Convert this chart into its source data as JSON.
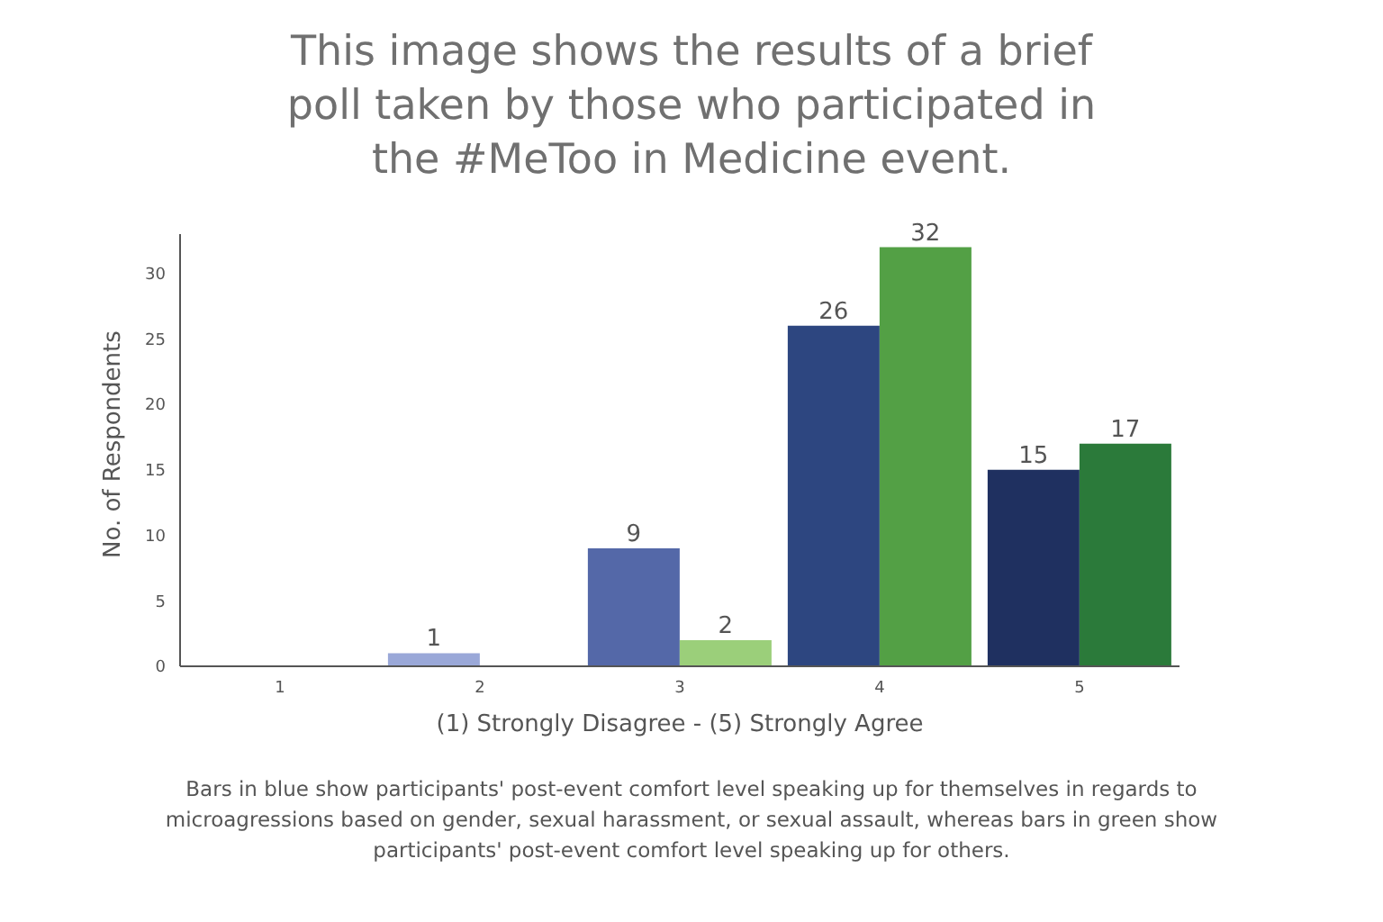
{
  "chart_data": {
    "type": "bar",
    "title": "This image shows the results of a brief poll taken by those who participated in the #MeToo in Medicine event.",
    "xlabel": "(1) Strongly Disagree - (5) Strongly Agree",
    "ylabel": "No. of Respondents",
    "categories": [
      "1",
      "2",
      "3",
      "4",
      "5"
    ],
    "series": [
      {
        "colors": [
          "#9aa8d8",
          "#9aa8d8",
          "#5468a8",
          "#2d4680",
          "#1f3060"
        ],
        "values": [
          0,
          1,
          9,
          26,
          15
        ],
        "value_labels": [
          null,
          "1",
          "9",
          "26",
          "15"
        ]
      },
      {
        "colors": [
          "#9bcf7a",
          "#9bcf7a",
          "#9bcf7a",
          "#53a045",
          "#2b7a3a"
        ],
        "values": [
          0,
          0,
          2,
          32,
          17
        ],
        "value_labels": [
          null,
          null,
          "2",
          "32",
          "17"
        ]
      }
    ],
    "ylim": [
      0,
      33
    ],
    "yticks": [
      0,
      5,
      10,
      15,
      20,
      25,
      30
    ],
    "grid": false,
    "legend": false,
    "annotations": [
      "Bars in blue show participants' post-event comfort level speaking up for themselves in regards to microagressions based on gender, sexual harassment, or sexual assault, whereas bars in green show participants' post-event comfort level speaking up for others."
    ]
  }
}
